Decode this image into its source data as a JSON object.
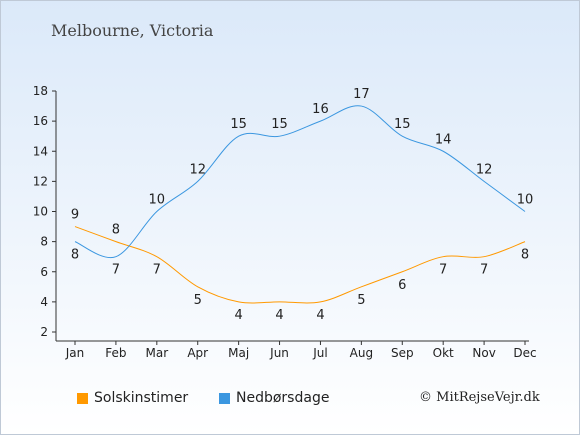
{
  "header": {
    "location": "Melbourne, Victoria"
  },
  "footer": {
    "copyright": "© MitRejseVejr.dk"
  },
  "chart_data": {
    "type": "line",
    "categories": [
      "Jan",
      "Feb",
      "Mar",
      "Apr",
      "Maj",
      "Jun",
      "Jul",
      "Aug",
      "Sep",
      "Okt",
      "Nov",
      "Dec"
    ],
    "ylim": [
      2,
      18
    ],
    "yticks": [
      2,
      4,
      6,
      8,
      10,
      12,
      14,
      16,
      18
    ],
    "grid": false,
    "legend_position": "bottom",
    "series": [
      {
        "name": "Solskinstimer",
        "color": "#ff9900",
        "values": [
          9,
          8,
          7,
          5,
          4,
          4,
          4,
          5,
          6,
          7,
          7,
          8
        ]
      },
      {
        "name": "Nedbørsdage",
        "color": "#3b97e0",
        "values": [
          8,
          7,
          10,
          12,
          15,
          15,
          16,
          17,
          15,
          14,
          12,
          10
        ]
      }
    ]
  }
}
